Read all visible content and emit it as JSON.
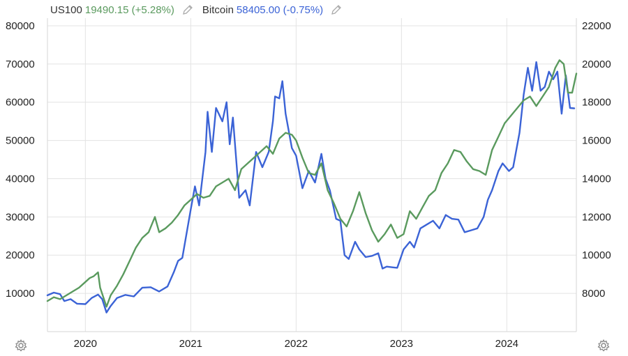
{
  "legend": {
    "series1_name": "US100",
    "series1_value": "19490.15 (+5.28%)",
    "series2_name": "Bitcoin",
    "series2_value": "58405.00 (-0.75%)"
  },
  "colors": {
    "us100": "#5a9a5e",
    "bitcoin": "#3b63d6",
    "grid": "#e3e3e3"
  },
  "icons": {
    "edit": "pencil-icon",
    "settings": "gear-icon"
  },
  "chart_data": {
    "type": "line",
    "title": "",
    "xlabel": "",
    "ylabel": "",
    "x_ticks": [
      "2020",
      "2021",
      "2022",
      "2023",
      "2024"
    ],
    "x_tick_positions": [
      2020.0,
      2021.0,
      2022.0,
      2023.0,
      2024.0
    ],
    "x_range": [
      2019.64,
      2024.66
    ],
    "left_axis": {
      "range": [
        0,
        82000
      ],
      "ticks": [
        "10000",
        "20000",
        "30000",
        "40000",
        "50000",
        "60000",
        "70000",
        "80000"
      ],
      "tick_values": [
        10000,
        20000,
        30000,
        40000,
        50000,
        60000,
        70000,
        80000
      ]
    },
    "right_axis": {
      "range": [
        6000,
        22400
      ],
      "ticks": [
        "8000",
        "10000",
        "12000",
        "14000",
        "16000",
        "18000",
        "20000",
        "22000"
      ],
      "tick_values": [
        8000,
        10000,
        12000,
        14000,
        16000,
        18000,
        20000,
        22000
      ]
    },
    "grid": true,
    "series": [
      {
        "name": "Bitcoin",
        "axis": "left",
        "color": "#3b63d6",
        "points": [
          [
            2019.64,
            9500
          ],
          [
            2019.7,
            10200
          ],
          [
            2019.76,
            9800
          ],
          [
            2019.8,
            8000
          ],
          [
            2019.86,
            8500
          ],
          [
            2019.92,
            7300
          ],
          [
            2020.0,
            7200
          ],
          [
            2020.06,
            8800
          ],
          [
            2020.12,
            9700
          ],
          [
            2020.16,
            8500
          ],
          [
            2020.2,
            5000
          ],
          [
            2020.24,
            6700
          ],
          [
            2020.3,
            8800
          ],
          [
            2020.38,
            9600
          ],
          [
            2020.46,
            9200
          ],
          [
            2020.54,
            11500
          ],
          [
            2020.62,
            11600
          ],
          [
            2020.7,
            10500
          ],
          [
            2020.78,
            11800
          ],
          [
            2020.84,
            15600
          ],
          [
            2020.88,
            18500
          ],
          [
            2020.92,
            19300
          ],
          [
            2021.0,
            32000
          ],
          [
            2021.04,
            38000
          ],
          [
            2021.08,
            33000
          ],
          [
            2021.14,
            47000
          ],
          [
            2021.16,
            57500
          ],
          [
            2021.2,
            47000
          ],
          [
            2021.24,
            58500
          ],
          [
            2021.3,
            55000
          ],
          [
            2021.34,
            60000
          ],
          [
            2021.37,
            49000
          ],
          [
            2021.4,
            56000
          ],
          [
            2021.46,
            35000
          ],
          [
            2021.52,
            37000
          ],
          [
            2021.56,
            33000
          ],
          [
            2021.62,
            47000
          ],
          [
            2021.68,
            43000
          ],
          [
            2021.74,
            47000
          ],
          [
            2021.78,
            55000
          ],
          [
            2021.8,
            61500
          ],
          [
            2021.84,
            61000
          ],
          [
            2021.87,
            65500
          ],
          [
            2021.9,
            57000
          ],
          [
            2021.96,
            48000
          ],
          [
            2022.0,
            46000
          ],
          [
            2022.06,
            37500
          ],
          [
            2022.12,
            42000
          ],
          [
            2022.18,
            39000
          ],
          [
            2022.24,
            46500
          ],
          [
            2022.28,
            40000
          ],
          [
            2022.32,
            37000
          ],
          [
            2022.38,
            29500
          ],
          [
            2022.42,
            29000
          ],
          [
            2022.46,
            20000
          ],
          [
            2022.5,
            19000
          ],
          [
            2022.56,
            23500
          ],
          [
            2022.6,
            21500
          ],
          [
            2022.66,
            19500
          ],
          [
            2022.72,
            19800
          ],
          [
            2022.78,
            20500
          ],
          [
            2022.82,
            16500
          ],
          [
            2022.86,
            17000
          ],
          [
            2022.92,
            16800
          ],
          [
            2022.96,
            16700
          ],
          [
            2023.02,
            21500
          ],
          [
            2023.08,
            23500
          ],
          [
            2023.12,
            22000
          ],
          [
            2023.18,
            27000
          ],
          [
            2023.24,
            28000
          ],
          [
            2023.3,
            29000
          ],
          [
            2023.36,
            27000
          ],
          [
            2023.42,
            30500
          ],
          [
            2023.48,
            29500
          ],
          [
            2023.54,
            29300
          ],
          [
            2023.6,
            26000
          ],
          [
            2023.66,
            26500
          ],
          [
            2023.72,
            27000
          ],
          [
            2023.78,
            30000
          ],
          [
            2023.82,
            34500
          ],
          [
            2023.86,
            37000
          ],
          [
            2023.92,
            42000
          ],
          [
            2023.96,
            44000
          ],
          [
            2024.02,
            42000
          ],
          [
            2024.06,
            43000
          ],
          [
            2024.12,
            52000
          ],
          [
            2024.16,
            62000
          ],
          [
            2024.2,
            69000
          ],
          [
            2024.24,
            63000
          ],
          [
            2024.28,
            70500
          ],
          [
            2024.32,
            63000
          ],
          [
            2024.36,
            64000
          ],
          [
            2024.4,
            68000
          ],
          [
            2024.44,
            66000
          ],
          [
            2024.48,
            68000
          ],
          [
            2024.52,
            57000
          ],
          [
            2024.56,
            67000
          ],
          [
            2024.6,
            58500
          ],
          [
            2024.64,
            58400
          ]
        ]
      },
      {
        "name": "US100",
        "axis": "right",
        "color": "#5a9a5e",
        "points": [
          [
            2019.64,
            7600
          ],
          [
            2019.7,
            7800
          ],
          [
            2019.76,
            7700
          ],
          [
            2019.82,
            7900
          ],
          [
            2019.88,
            8100
          ],
          [
            2019.94,
            8300
          ],
          [
            2020.0,
            8600
          ],
          [
            2020.04,
            8800
          ],
          [
            2020.08,
            8900
          ],
          [
            2020.12,
            9100
          ],
          [
            2020.14,
            8300
          ],
          [
            2020.2,
            7300
          ],
          [
            2020.24,
            7900
          ],
          [
            2020.3,
            8400
          ],
          [
            2020.36,
            9000
          ],
          [
            2020.42,
            9700
          ],
          [
            2020.48,
            10400
          ],
          [
            2020.54,
            10900
          ],
          [
            2020.6,
            11200
          ],
          [
            2020.66,
            12000
          ],
          [
            2020.7,
            11200
          ],
          [
            2020.76,
            11400
          ],
          [
            2020.82,
            11700
          ],
          [
            2020.88,
            12100
          ],
          [
            2020.94,
            12600
          ],
          [
            2021.0,
            12900
          ],
          [
            2021.06,
            13200
          ],
          [
            2021.12,
            13000
          ],
          [
            2021.18,
            13100
          ],
          [
            2021.24,
            13600
          ],
          [
            2021.3,
            13800
          ],
          [
            2021.36,
            14000
          ],
          [
            2021.42,
            13400
          ],
          [
            2021.48,
            14500
          ],
          [
            2021.54,
            14800
          ],
          [
            2021.6,
            15100
          ],
          [
            2021.66,
            15400
          ],
          [
            2021.72,
            15700
          ],
          [
            2021.78,
            15300
          ],
          [
            2021.84,
            16100
          ],
          [
            2021.9,
            16400
          ],
          [
            2021.96,
            16300
          ],
          [
            2022.0,
            16000
          ],
          [
            2022.06,
            15100
          ],
          [
            2022.12,
            14300
          ],
          [
            2022.18,
            14200
          ],
          [
            2022.24,
            14800
          ],
          [
            2022.3,
            13400
          ],
          [
            2022.36,
            12700
          ],
          [
            2022.42,
            11900
          ],
          [
            2022.48,
            11500
          ],
          [
            2022.54,
            12300
          ],
          [
            2022.6,
            13300
          ],
          [
            2022.66,
            12200
          ],
          [
            2022.72,
            11300
          ],
          [
            2022.78,
            10700
          ],
          [
            2022.84,
            11100
          ],
          [
            2022.9,
            11600
          ],
          [
            2022.96,
            10900
          ],
          [
            2023.02,
            11100
          ],
          [
            2023.08,
            12300
          ],
          [
            2023.14,
            11900
          ],
          [
            2023.2,
            12500
          ],
          [
            2023.26,
            13100
          ],
          [
            2023.32,
            13400
          ],
          [
            2023.38,
            14300
          ],
          [
            2023.44,
            14800
          ],
          [
            2023.5,
            15500
          ],
          [
            2023.56,
            15400
          ],
          [
            2023.62,
            14900
          ],
          [
            2023.68,
            14500
          ],
          [
            2023.74,
            14400
          ],
          [
            2023.8,
            14200
          ],
          [
            2023.86,
            15500
          ],
          [
            2023.92,
            16200
          ],
          [
            2023.98,
            16900
          ],
          [
            2024.04,
            17300
          ],
          [
            2024.1,
            17700
          ],
          [
            2024.16,
            18100
          ],
          [
            2024.22,
            18300
          ],
          [
            2024.28,
            17800
          ],
          [
            2024.34,
            18300
          ],
          [
            2024.4,
            18800
          ],
          [
            2024.46,
            19800
          ],
          [
            2024.5,
            20200
          ],
          [
            2024.54,
            20000
          ],
          [
            2024.58,
            18500
          ],
          [
            2024.62,
            18500
          ],
          [
            2024.66,
            19500
          ]
        ]
      }
    ]
  }
}
